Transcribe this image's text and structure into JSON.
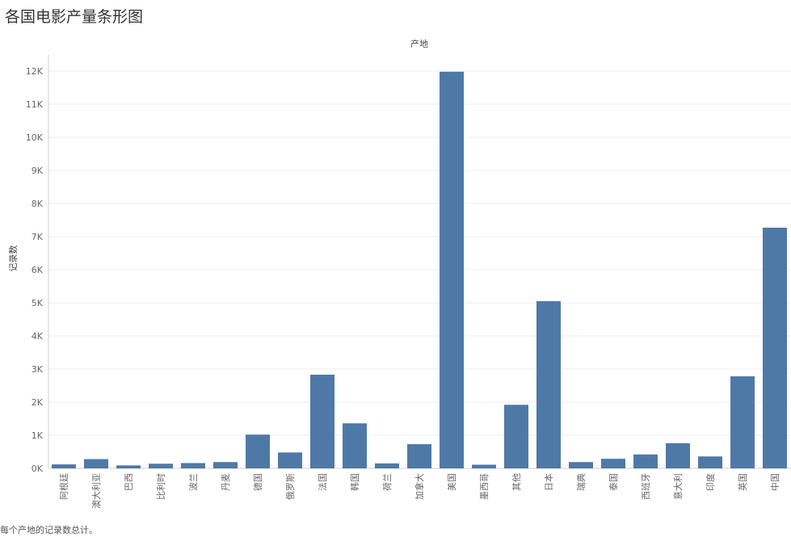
{
  "title": "各国电影产量条形图",
  "footer": "每个产地的记录数总计。",
  "colors": {
    "bar": "#4e79a7",
    "grid": "#ececec",
    "axis": "#d0d0d0"
  },
  "chart_data": {
    "type": "bar",
    "xlabel": "产地",
    "ylabel": "记录数",
    "ylim": [
      0,
      12000
    ],
    "yticks": [
      {
        "value": 0,
        "label": "0K"
      },
      {
        "value": 1000,
        "label": "1K"
      },
      {
        "value": 2000,
        "label": "2K"
      },
      {
        "value": 3000,
        "label": "3K"
      },
      {
        "value": 4000,
        "label": "4K"
      },
      {
        "value": 5000,
        "label": "5K"
      },
      {
        "value": 6000,
        "label": "6K"
      },
      {
        "value": 7000,
        "label": "7K"
      },
      {
        "value": 8000,
        "label": "8K"
      },
      {
        "value": 9000,
        "label": "9K"
      },
      {
        "value": 10000,
        "label": "10K"
      },
      {
        "value": 11000,
        "label": "11K"
      },
      {
        "value": 12000,
        "label": "12K"
      }
    ],
    "grid": true,
    "categories": [
      "阿根廷",
      "澳大利亚",
      "巴西",
      "比利时",
      "波兰",
      "丹麦",
      "德国",
      "俄罗斯",
      "法国",
      "韩国",
      "荷兰",
      "加拿大",
      "美国",
      "墨西哥",
      "其他",
      "日本",
      "瑞典",
      "泰国",
      "西班牙",
      "意大利",
      "印度",
      "英国",
      "中国"
    ],
    "values": [
      120,
      280,
      90,
      140,
      160,
      190,
      1020,
      480,
      2830,
      1360,
      150,
      730,
      11980,
      110,
      1920,
      5050,
      190,
      290,
      420,
      760,
      360,
      2780,
      7270
    ]
  }
}
